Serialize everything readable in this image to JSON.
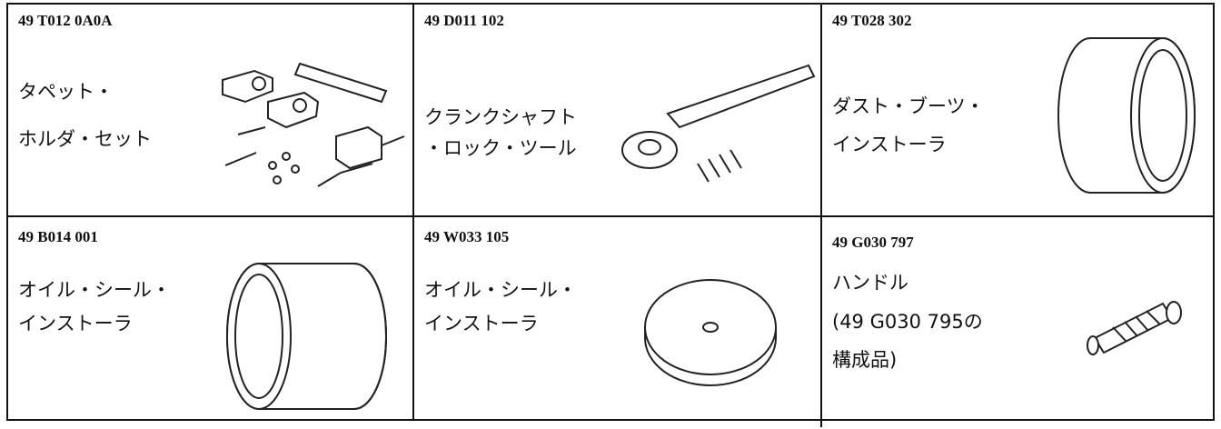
{
  "cells": [
    {
      "part_number": "49 T012 0A0A",
      "name_lines": [
        "タペット・",
        "ホルダ・セット"
      ]
    },
    {
      "part_number": "49 D011 102",
      "name_lines": [
        "クランクシャフト",
        "・ロック・ツール"
      ]
    },
    {
      "part_number": "49 T028 302",
      "name_lines": [
        "ダスト・ブーツ・",
        "インストーラ"
      ]
    },
    {
      "part_number": "49 B014 001",
      "name_lines": [
        "オイル・シール・",
        "インストーラ"
      ]
    },
    {
      "part_number": "49 W033 105",
      "name_lines": [
        "オイル・シール・",
        "インストーラ"
      ]
    },
    {
      "part_number": "49 G030 797",
      "name_lines": [
        "ハンドル",
        "(49 G030 795の",
        "構成品)"
      ]
    }
  ]
}
